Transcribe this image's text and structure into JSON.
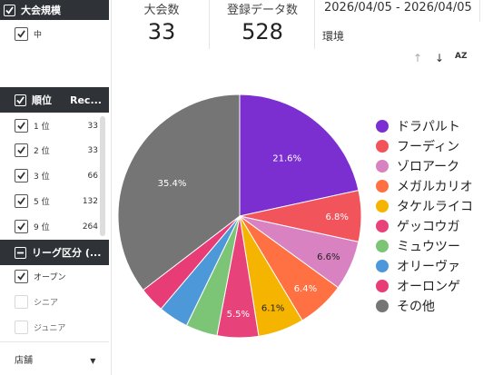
{
  "filters": {
    "size": {
      "title": "大会規模",
      "item": "中"
    },
    "rank": {
      "title": "順位",
      "col": "Rec...",
      "items": [
        {
          "label": "1 位",
          "value": "33"
        },
        {
          "label": "2 位",
          "value": "33"
        },
        {
          "label": "3 位",
          "value": "66"
        },
        {
          "label": "5 位",
          "value": "132"
        },
        {
          "label": "9 位",
          "value": "264"
        }
      ]
    },
    "league": {
      "title": "リーグ区分 (...",
      "items": [
        {
          "label": "オープン",
          "checked": true
        },
        {
          "label": "シニア",
          "checked": false
        },
        {
          "label": "ジュニア",
          "checked": false
        }
      ]
    },
    "store": {
      "label": "店舗"
    }
  },
  "scorecards": [
    {
      "label": "大会数",
      "value": "33"
    },
    {
      "label": "登録データ数",
      "value": "528"
    }
  ],
  "date_range": "2026/04/05 - 2026/04/05",
  "env_label": "環境",
  "toolbar": {
    "sort_asc": "↑",
    "sort_desc": "↓",
    "sort_az": "AZ"
  },
  "chart_data": {
    "type": "pie",
    "labels": [
      "ドラパルト",
      "フーディン",
      "ゾロアーク",
      "メガルカリオ",
      "タケルライコ",
      "ゲッコウガ",
      "ミュウツー",
      "オリーヴァ",
      "オーロンゲ",
      "その他"
    ],
    "values": [
      21.6,
      6.8,
      6.6,
      6.4,
      6.1,
      5.5,
      4.2,
      4.0,
      3.4,
      35.4
    ],
    "shown_labels": [
      "21.6%",
      "6.8%",
      "6.6%",
      "6.4%",
      "6.1%",
      "5.5%",
      "",
      "",
      "",
      "35.4%"
    ],
    "colors": [
      "#7b2fd0",
      "#f2545b",
      "#d882c2",
      "#ff7043",
      "#f5b400",
      "#e8427a",
      "#7cc576",
      "#4c98d8",
      "#e83c77",
      "#757575"
    ],
    "legend_position": "right"
  }
}
